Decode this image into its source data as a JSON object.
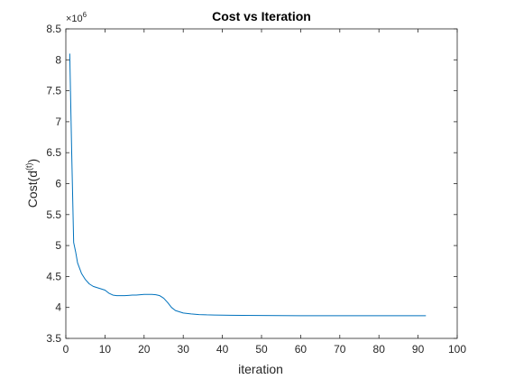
{
  "chart_data": {
    "type": "line",
    "title": "Cost vs Iteration",
    "xlabel": "iteration",
    "ylabel": {
      "main": "Cost(d",
      "superscript": "(t)",
      "close": ")"
    },
    "y_multiplier": {
      "prefix": "×10",
      "exponent": "6"
    },
    "xlim": [
      0,
      100
    ],
    "ylim": [
      3.5,
      8.5
    ],
    "x_ticks": [
      0,
      10,
      20,
      30,
      40,
      50,
      60,
      70,
      80,
      90,
      100
    ],
    "x_tick_labels": [
      "0",
      "10",
      "20",
      "30",
      "40",
      "50",
      "60",
      "70",
      "80",
      "90",
      "100"
    ],
    "y_ticks": [
      3.5,
      4,
      4.5,
      5,
      5.5,
      6,
      6.5,
      7,
      7.5,
      8,
      8.5
    ],
    "y_tick_labels": [
      "3.5",
      "4",
      "4.5",
      "5",
      "5.5",
      "6",
      "6.5",
      "7",
      "7.5",
      "8",
      "8.5"
    ],
    "grid": false,
    "box": true,
    "series": [
      {
        "color": "#0072BD",
        "x": [
          1,
          1.5,
          2,
          2.5,
          3,
          4,
          5,
          6,
          7,
          8,
          9,
          10,
          11,
          12,
          13,
          14,
          15,
          16,
          17,
          18,
          19,
          20,
          21,
          22,
          23,
          24,
          25,
          26,
          27,
          28,
          29,
          30,
          32,
          34,
          36,
          38,
          40,
          45,
          50,
          55,
          60,
          70,
          80,
          92
        ],
        "y": [
          8.1,
          6.5,
          5.05,
          4.9,
          4.72,
          4.55,
          4.45,
          4.38,
          4.34,
          4.32,
          4.3,
          4.28,
          4.23,
          4.2,
          4.19,
          4.19,
          4.19,
          4.195,
          4.2,
          4.2,
          4.205,
          4.21,
          4.21,
          4.21,
          4.205,
          4.19,
          4.15,
          4.08,
          4.0,
          3.95,
          3.93,
          3.91,
          3.895,
          3.885,
          3.88,
          3.878,
          3.875,
          3.872,
          3.87,
          3.868,
          3.867,
          3.867,
          3.867,
          3.867
        ]
      }
    ]
  }
}
